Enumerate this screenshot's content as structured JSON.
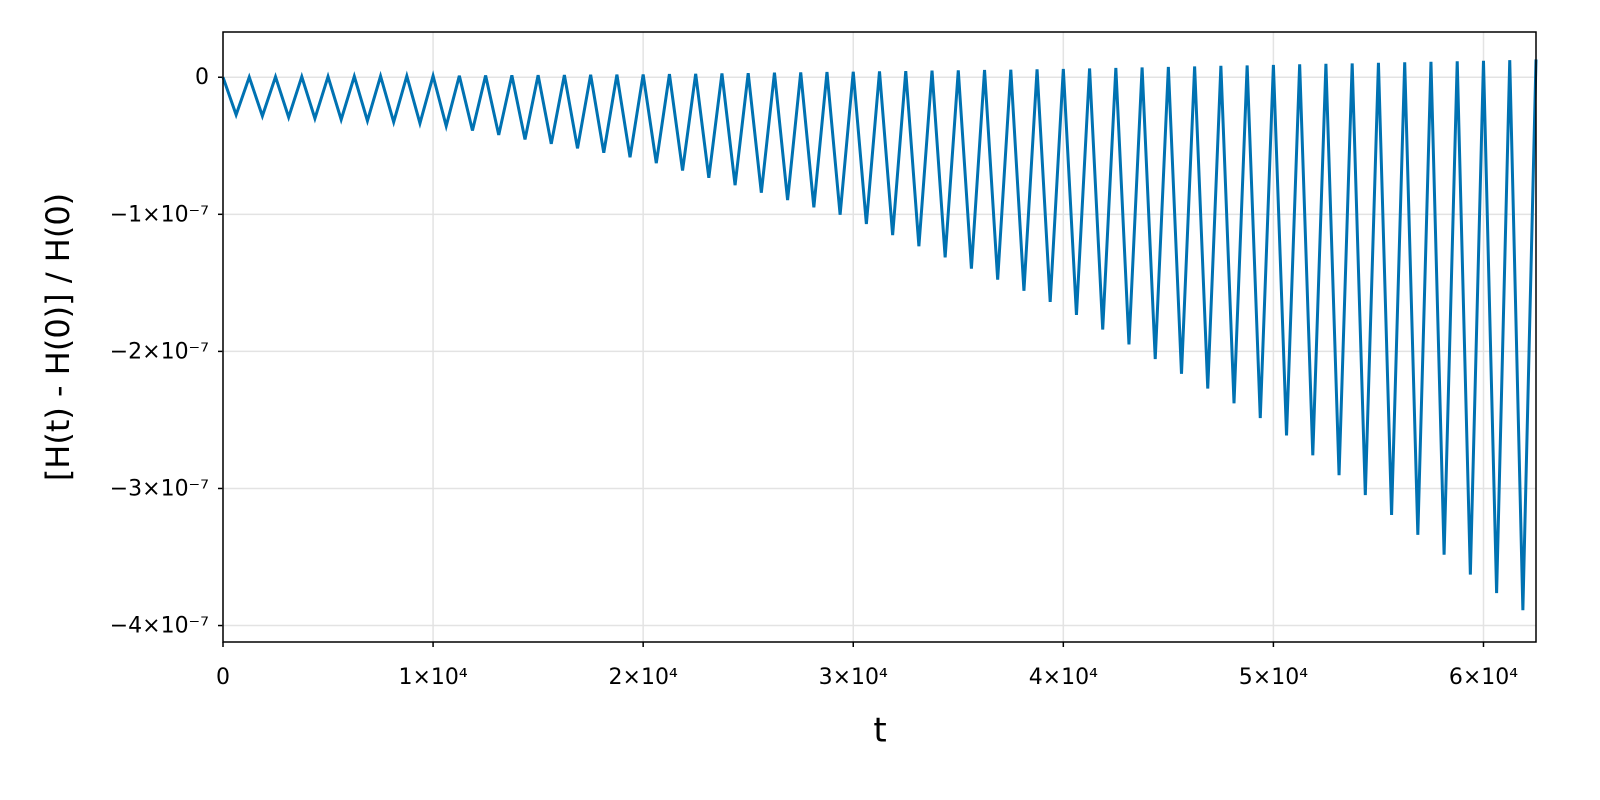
{
  "chart_data": {
    "type": "line",
    "xlabel": "t",
    "ylabel": "[H(t) - H(0)] / H(0)",
    "color": "#0072b2",
    "grid": true,
    "xlim": [
      0,
      62500
    ],
    "ylim": [
      -4.12e-07,
      3.3e-08
    ],
    "xticks": [
      0,
      {
        "value": 10000,
        "label": "1×10⁴"
      },
      {
        "value": 20000,
        "label": "2×10⁴"
      },
      {
        "value": 30000,
        "label": "3×10⁴"
      },
      {
        "value": 40000,
        "label": "4×10⁴"
      },
      {
        "value": 50000,
        "label": "5×10⁴"
      },
      {
        "value": 60000,
        "label": "6×10⁴"
      }
    ],
    "yticks": [
      0,
      {
        "value": -1e-07,
        "label": "−1×10⁻⁷"
      },
      {
        "value": -2e-07,
        "label": "−2×10⁻⁷"
      },
      {
        "value": -3e-07,
        "label": "−3×10⁻⁷"
      },
      {
        "value": -4e-07,
        "label": "−4×10⁻⁷"
      }
    ],
    "x": [
      0,
      625,
      1250,
      1875,
      2500,
      3125,
      3750,
      4375,
      5000,
      5625,
      6250,
      6875,
      7500,
      8125,
      8750,
      9375,
      10000,
      10625,
      11250,
      11875,
      12500,
      13125,
      13750,
      14375,
      15000,
      15625,
      16250,
      16875,
      17500,
      18125,
      18750,
      19375,
      20000,
      20625,
      21250,
      21875,
      22500,
      23125,
      23750,
      24375,
      25000,
      25625,
      26250,
      26875,
      27500,
      28125,
      28750,
      29375,
      30000,
      30625,
      31250,
      31875,
      32500,
      33125,
      33750,
      34375,
      35000,
      35625,
      36250,
      36875,
      37500,
      38125,
      38750,
      39375,
      40000,
      40625,
      41250,
      41875,
      42500,
      43125,
      43750,
      44375,
      45000,
      45625,
      46250,
      46875,
      47500,
      48125,
      48750,
      49375,
      50000,
      50625,
      51250,
      51875,
      52500,
      53125,
      53750,
      54375,
      55000,
      55625,
      56250,
      56875,
      57500,
      58125,
      58750,
      59375,
      60000,
      60625,
      61250,
      61875,
      62500
    ],
    "values": [
      0,
      -2.74e-08,
      1e-10,
      -2.83e-08,
      3e-10,
      -2.92e-08,
      4e-10,
      -3.01e-08,
      5e-10,
      -3.09e-08,
      6e-10,
      -3.18e-08,
      8e-10,
      -3.27e-08,
      9e-10,
      -3.36e-08,
      1e-09,
      -3.56e-08,
      1.1e-09,
      -3.89e-08,
      1.3e-09,
      -4.21e-08,
      1.4e-09,
      -4.54e-08,
      1.5e-09,
      -4.86e-08,
      1.6e-09,
      -5.19e-08,
      1.8e-09,
      -5.51e-08,
      1.9e-09,
      -5.84e-08,
      2e-09,
      -6.27e-08,
      2.3e-09,
      -6.81e-08,
      2.5e-09,
      -7.34e-08,
      2.8e-09,
      -7.88e-08,
      3e-09,
      -8.42e-08,
      3.3e-09,
      -8.96e-08,
      3.5e-09,
      -9.49e-08,
      3.8e-09,
      -1.003e-07,
      4e-09,
      -1.071e-07,
      4.3e-09,
      -1.152e-07,
      4.5e-09,
      -1.233e-07,
      4.8e-09,
      -1.314e-07,
      5e-09,
      -1.396e-07,
      5.3e-09,
      -1.477e-07,
      5.5e-09,
      -1.558e-07,
      5.8e-09,
      -1.639e-07,
      6e-09,
      -1.734e-07,
      6.4e-09,
      -1.841e-07,
      6.8e-09,
      -1.949e-07,
      7.1e-09,
      -2.056e-07,
      7.5e-09,
      -2.164e-07,
      7.9e-09,
      -2.271e-07,
      8.3e-09,
      -2.379e-07,
      8.6e-09,
      -2.486e-07,
      9e-09,
      -2.613e-07,
      9.4e-09,
      -2.758e-07,
      9.8e-09,
      -2.903e-07,
      1.01e-08,
      -3.048e-07,
      1.05e-08,
      -3.193e-07,
      1.09e-08,
      -3.338e-07,
      1.13e-08,
      -3.483e-07,
      1.16e-08,
      -3.628e-07,
      1.2e-08,
      -3.763e-07,
      1.25e-08,
      -3.888e-07,
      1.3e-08
    ]
  }
}
